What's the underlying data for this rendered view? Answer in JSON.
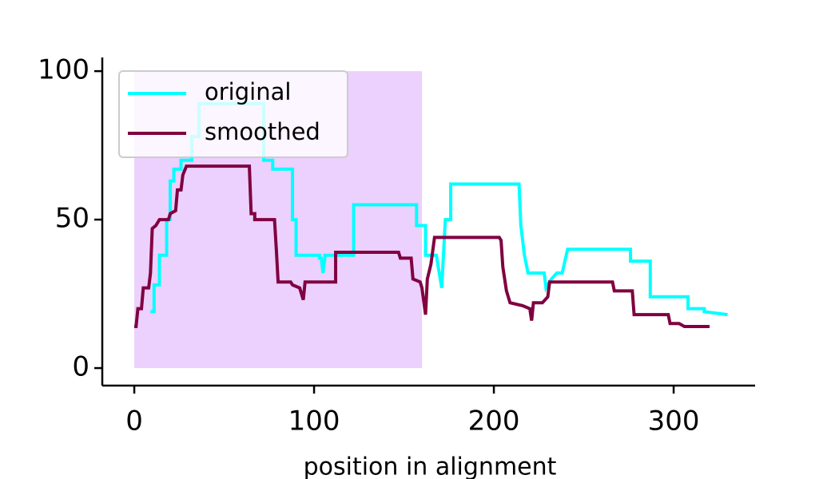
{
  "chart_data": {
    "type": "line",
    "xlabel": "position in alignment",
    "xlim": [
      -17.8,
      345.3
    ],
    "ylim": [
      -5.9,
      104.6
    ],
    "xticks": [
      0,
      100,
      200,
      300
    ],
    "yticks": [
      0,
      50,
      100
    ],
    "highlight": {
      "x": [
        0,
        160
      ],
      "y": [
        0,
        100
      ],
      "color": "#ecd0fd"
    },
    "legend": "upper left",
    "series": [
      {
        "name": "original",
        "color": "#00ffff",
        "x": [
          9,
          11,
          11,
          14,
          14,
          18,
          18,
          20,
          20,
          22,
          22,
          26,
          26,
          32,
          32,
          36,
          36,
          72,
          72,
          77,
          77,
          88,
          88,
          90,
          90,
          103,
          103,
          104,
          105,
          106,
          106,
          122,
          122,
          157,
          157,
          162,
          162,
          168,
          171,
          173,
          176,
          176,
          214,
          215,
          217,
          219,
          228,
          229,
          232,
          235,
          238,
          241,
          276,
          276,
          287,
          287,
          308,
          308,
          317,
          317,
          330
        ],
        "values": [
          19,
          19,
          28,
          28,
          38,
          38,
          50,
          50,
          63,
          63,
          67,
          67,
          70,
          70,
          78,
          78,
          89,
          89,
          70,
          70,
          67,
          67,
          50,
          50,
          38,
          38,
          37,
          37,
          32,
          37,
          38,
          38,
          55,
          55,
          48,
          48,
          38,
          38,
          27,
          50,
          50,
          62,
          62,
          48,
          38,
          32,
          32,
          27,
          30,
          32,
          32,
          40,
          40,
          36,
          36,
          24,
          24,
          20,
          20,
          19,
          18
        ]
      },
      {
        "name": "smoothed",
        "color": "#800040",
        "x": [
          0,
          1,
          2,
          4,
          5,
          8,
          9,
          10,
          12,
          14,
          19,
          20,
          23,
          24,
          26,
          27,
          29,
          64,
          65,
          67,
          67,
          78,
          79,
          80,
          87,
          88,
          92,
          94,
          95,
          112,
          112,
          147,
          148,
          154,
          155,
          159,
          160,
          162,
          163,
          165,
          167,
          203,
          204,
          205,
          207,
          209,
          216,
          220,
          221,
          222,
          227,
          230,
          231,
          266,
          267,
          277,
          278,
          297,
          298,
          303,
          306,
          320
        ],
        "values": [
          14,
          14,
          20,
          20,
          27,
          27,
          32,
          47,
          48,
          50,
          50,
          52,
          53,
          60,
          60,
          65,
          68,
          68,
          52,
          52,
          50,
          50,
          40,
          29,
          29,
          28,
          27,
          23,
          29,
          29,
          39,
          39,
          37,
          37,
          30,
          29,
          27,
          18,
          30,
          35,
          44,
          44,
          43,
          34,
          26,
          22,
          21,
          20,
          16,
          22,
          22,
          24,
          29,
          29,
          26,
          26,
          18,
          18,
          15,
          15,
          14,
          14
        ]
      }
    ]
  }
}
